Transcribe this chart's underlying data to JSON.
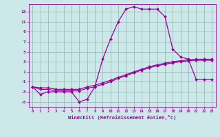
{
  "xlabel": "Windchill (Refroidissement éolien,°C)",
  "x": [
    0,
    1,
    2,
    3,
    4,
    5,
    6,
    7,
    8,
    9,
    10,
    11,
    12,
    13,
    14,
    15,
    16,
    17,
    18,
    19,
    20,
    21,
    22,
    23
  ],
  "line1": [
    -2,
    -3.5,
    -3,
    -3,
    -3,
    -3,
    -5,
    -4.5,
    -2,
    3.5,
    7.5,
    11,
    13.5,
    14,
    13.5,
    13.5,
    13.5,
    12,
    5.5,
    4,
    3.5,
    -0.5,
    -0.5,
    -0.5
  ],
  "line2": [
    -2,
    -2.5,
    -2.5,
    -2.8,
    -2.8,
    -2.8,
    -2.8,
    -2.3,
    -2.0,
    -1.5,
    -1.0,
    -0.3,
    0.2,
    0.8,
    1.3,
    1.8,
    2.2,
    2.5,
    2.8,
    3.0,
    3.2,
    3.3,
    3.3,
    3.3
  ],
  "line3": [
    -2,
    -2.2,
    -2.2,
    -2.5,
    -2.5,
    -2.5,
    -2.5,
    -2.0,
    -1.7,
    -1.2,
    -0.7,
    -0.1,
    0.4,
    1.0,
    1.5,
    2.0,
    2.4,
    2.7,
    3.0,
    3.2,
    3.4,
    3.5,
    3.5,
    3.5
  ],
  "line_color": "#990099",
  "bg_color": "#cce8e8",
  "grid_color": "#99bbbb",
  "ylim": [
    -6,
    14.5
  ],
  "yticks": [
    -5,
    -3,
    -1,
    1,
    3,
    5,
    7,
    9,
    11,
    13
  ],
  "marker": "D",
  "markersize": 2.0,
  "linewidth": 0.9
}
